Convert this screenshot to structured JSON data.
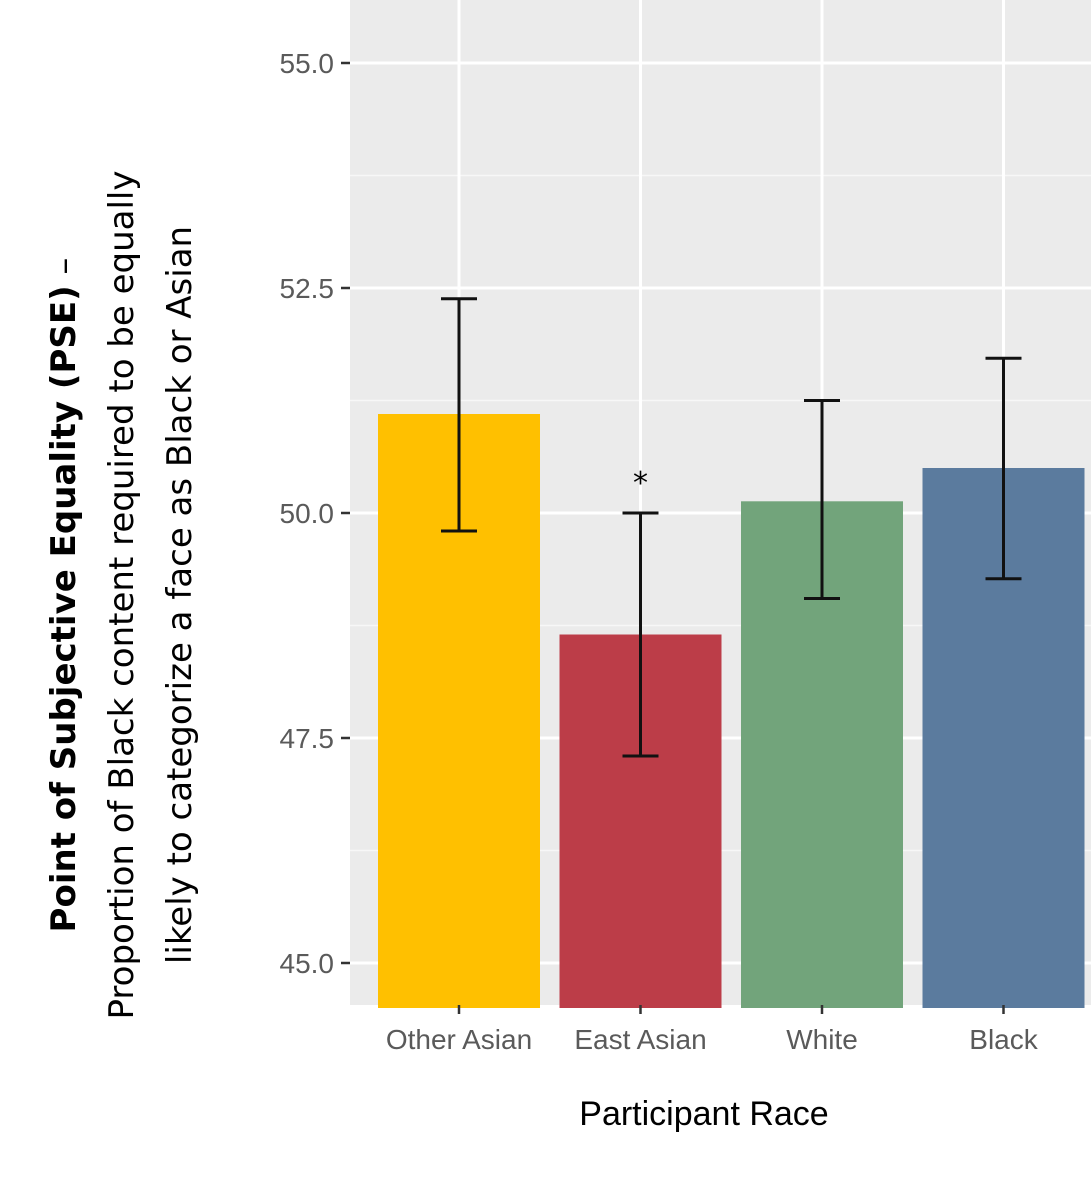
{
  "chart_data": {
    "type": "bar",
    "categories": [
      "Other Asian",
      "East Asian",
      "White",
      "Black"
    ],
    "values": [
      51.1,
      48.65,
      50.13,
      50.5
    ],
    "error_bars": [
      {
        "low": 49.8,
        "high": 52.38
      },
      {
        "low": 47.3,
        "high": 50.0
      },
      {
        "low": 49.05,
        "high": 51.25
      },
      {
        "low": 49.27,
        "high": 51.72
      }
    ],
    "colors": [
      "#FFC000",
      "#BC3D48",
      "#72A47B",
      "#5B7B9E"
    ],
    "annotations": [
      {
        "category": "East Asian",
        "text": "*"
      }
    ],
    "ylim": [
      44.5,
      55.5
    ],
    "yticks": [
      45.0,
      47.5,
      50.0,
      52.5,
      55.0
    ],
    "ytick_labels": [
      "45.0",
      "47.5",
      "50.0",
      "52.5",
      "55.0"
    ],
    "xlabel": "Participant Race",
    "ylabel_bold": "Point of Subjective Equality (PSE)",
    "ylabel_dash": " –",
    "ylabel_line2": "Proportion of Black content required to be equally",
    "ylabel_line3": "likely to categorize a face as Black or Asian",
    "grid": true,
    "panel_background": "#EBEBEB"
  }
}
